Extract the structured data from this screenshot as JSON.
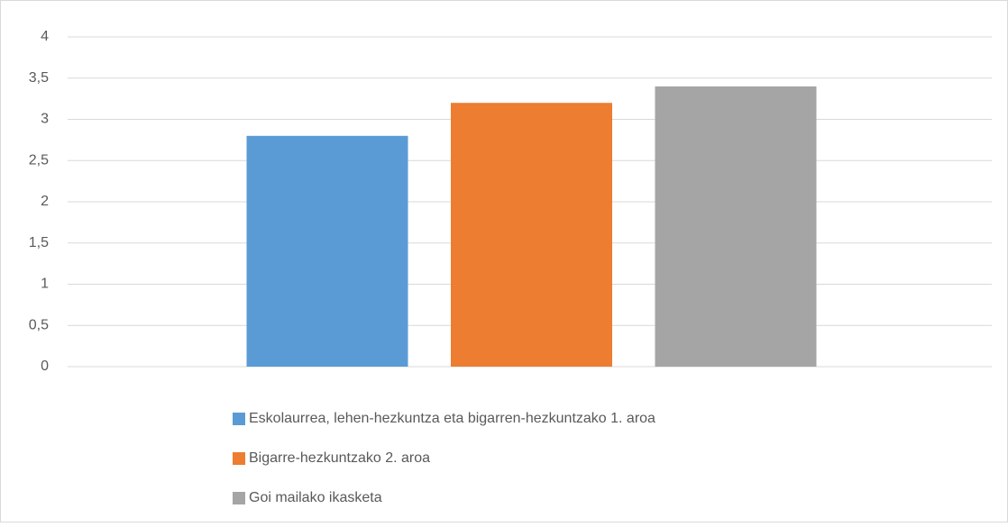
{
  "chart_data": {
    "type": "bar",
    "categories": [
      null
    ],
    "series": [
      {
        "name": "Eskolaurrea, lehen-hezkuntza eta bigarren-hezkuntzako 1. aroa",
        "color": "#5b9bd5",
        "values": [
          2.8
        ]
      },
      {
        "name": "Bigarre-hezkuntzako 2. aroa",
        "color": "#ed7d31",
        "values": [
          3.2
        ]
      },
      {
        "name": "Goi mailako ikasketa",
        "color": "#a5a5a5",
        "values": [
          3.4
        ]
      }
    ],
    "ylim": [
      0,
      4
    ],
    "yticks": [
      0,
      {
        "value": 0.5,
        "label": "0,5"
      },
      1,
      {
        "value": 1.5,
        "label": "1,5"
      },
      2,
      {
        "value": 2.5,
        "label": "2,5"
      },
      3,
      {
        "value": 3.5,
        "label": "3,5"
      },
      4
    ],
    "grid": true,
    "legend": "bottom"
  }
}
